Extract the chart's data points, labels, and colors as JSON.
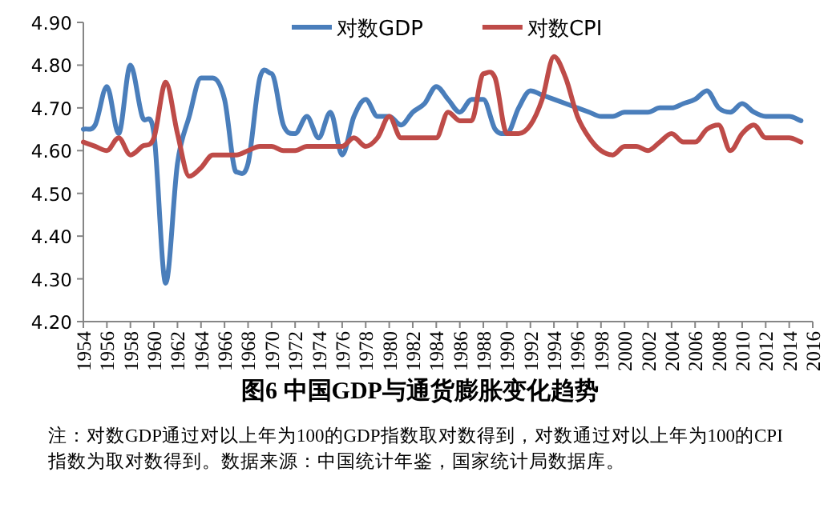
{
  "chart_data": {
    "type": "line",
    "title": "图6  中国GDP与通货膨胀变化趋势",
    "annotations": [
      "注：对数GDP通过对以上年为100的GDP指数取对数得到，对数通过对以上年为100的CPI",
      "指数为取对数得到。数据来源：中国统计年鉴，国家统计局数据库。"
    ],
    "categories": [
      "1954",
      null,
      "1956",
      null,
      "1958",
      null,
      "1960",
      null,
      "1962",
      null,
      "1964",
      null,
      "1966",
      null,
      "1968",
      null,
      "1970",
      null,
      "1972",
      null,
      "1974",
      null,
      "1976",
      null,
      "1978",
      null,
      "1980",
      null,
      "1982",
      null,
      "1984",
      null,
      "1986",
      null,
      "1988",
      null,
      "1990",
      null,
      "1992",
      null,
      "1994",
      null,
      "1996",
      null,
      "1998",
      null,
      "2000",
      null,
      "2002",
      null,
      "2004",
      null,
      "2006",
      null,
      "2008",
      null,
      "2010",
      null,
      "2012",
      null,
      "2014",
      null,
      "2016"
    ],
    "series": [
      {
        "name": "对数GDP",
        "color": "#4a7ebb",
        "values": [
          4.65,
          4.66,
          4.75,
          4.64,
          4.8,
          4.68,
          4.64,
          4.29,
          4.57,
          4.68,
          4.77,
          4.77,
          4.72,
          4.55,
          4.57,
          4.77,
          4.78,
          4.66,
          4.64,
          4.68,
          4.63,
          4.69,
          4.59,
          4.68,
          4.72,
          4.68,
          4.68,
          4.66,
          4.69,
          4.71,
          4.75,
          4.72,
          4.69,
          4.72,
          4.72,
          4.65,
          4.64,
          4.7,
          4.74,
          4.73,
          4.72,
          4.71,
          4.7,
          4.69,
          4.68,
          4.68,
          4.69,
          4.69,
          4.69,
          4.7,
          4.7,
          4.71,
          4.72,
          4.74,
          4.7,
          4.69,
          4.71,
          4.69,
          4.68,
          4.68,
          4.68,
          4.67,
          null
        ]
      },
      {
        "name": "对数CPI",
        "color": "#be4b48",
        "values": [
          4.62,
          4.61,
          4.6,
          4.63,
          4.59,
          4.61,
          4.63,
          4.76,
          4.64,
          4.54,
          4.56,
          4.59,
          4.59,
          4.59,
          4.6,
          4.61,
          4.61,
          4.6,
          4.6,
          4.61,
          4.61,
          4.61,
          4.61,
          4.63,
          4.61,
          4.63,
          4.68,
          4.63,
          4.63,
          4.63,
          4.63,
          4.69,
          4.67,
          4.67,
          4.78,
          4.77,
          4.64,
          4.64,
          4.66,
          4.72,
          4.82,
          4.77,
          4.68,
          4.63,
          4.6,
          4.59,
          4.61,
          4.61,
          4.6,
          4.62,
          4.64,
          4.62,
          4.62,
          4.65,
          4.66,
          4.6,
          4.64,
          4.66,
          4.63,
          4.63,
          4.63,
          4.62,
          null
        ]
      }
    ],
    "ylim": [
      4.2,
      4.9
    ],
    "yticks": [
      {
        "value": 4.2,
        "label": "4.20"
      },
      {
        "value": 4.3,
        "label": "4.30"
      },
      {
        "value": 4.4,
        "label": "4.40"
      },
      {
        "value": 4.5,
        "label": "4.50"
      },
      {
        "value": 4.6,
        "label": "4.60"
      },
      {
        "value": 4.7,
        "label": "4.70"
      },
      {
        "value": 4.8,
        "label": "4.80"
      },
      {
        "value": 4.9,
        "label": "4.90"
      }
    ],
    "legend": "top",
    "grid": false
  }
}
